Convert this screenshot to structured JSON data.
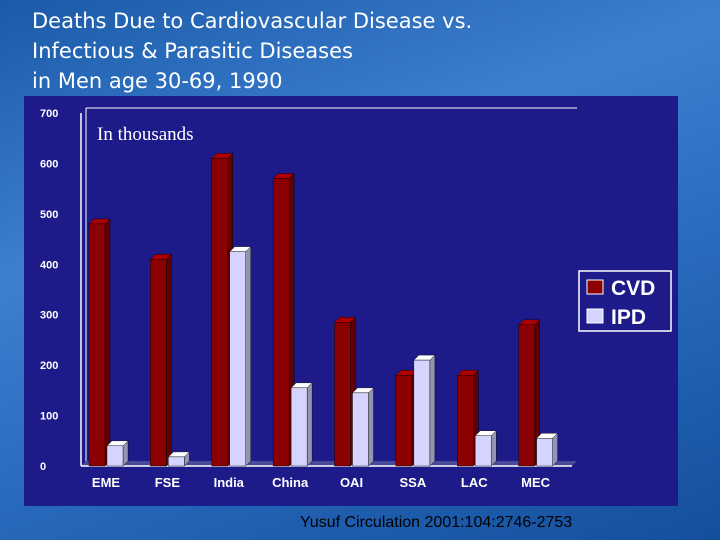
{
  "title_lines": [
    "Deaths Due to Cardiovascular Disease vs.",
    "Infectious & Parasitic Diseases",
    "in Men age 30-69, 1990"
  ],
  "citation": "Yusuf Circulation 2001:104:2746-2753",
  "colors": {
    "cvd": "#8b0000",
    "ipd": "#d4d4ff",
    "panel": "#1d1a8a"
  },
  "chart_data": {
    "type": "bar",
    "annotation": "In thousands",
    "categories": [
      "EME",
      "FSE",
      "India",
      "China",
      "OAI",
      "SSA",
      "LAC",
      "MEC"
    ],
    "series": [
      {
        "name": "CVD",
        "values": [
          480,
          410,
          610,
          570,
          285,
          180,
          180,
          280
        ]
      },
      {
        "name": "IPD",
        "values": [
          40,
          18,
          425,
          155,
          145,
          210,
          60,
          55
        ]
      }
    ],
    "ylim": [
      0,
      700
    ],
    "yticks": [
      "0",
      "100",
      "200",
      "300",
      "400",
      "500",
      "600",
      "700"
    ],
    "legend_position": "right",
    "grid": false
  }
}
